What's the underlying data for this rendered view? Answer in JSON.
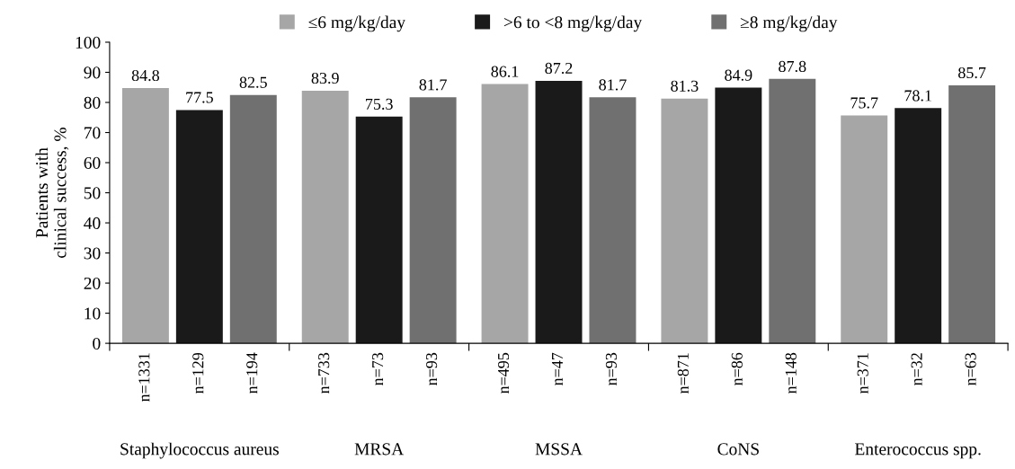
{
  "chart_data": {
    "type": "bar",
    "ylabel": "Patients with\nclinical success, %",
    "categories": [
      "Staphylococcus aureus",
      "MRSA",
      "MSSA",
      "CoNS",
      "Enterococcus spp."
    ],
    "series": [
      {
        "name": "≤6 mg/kg/day",
        "color": "#a6a6a6",
        "values": [
          84.8,
          83.9,
          86.1,
          81.3,
          75.7
        ]
      },
      {
        "name": ">6 to <8 mg/kg/day",
        "color": "#1a1a1a",
        "values": [
          77.5,
          75.3,
          87.2,
          84.9,
          78.1
        ]
      },
      {
        "name": "≥8 mg/kg/day",
        "color": "#707070",
        "values": [
          82.5,
          81.7,
          81.7,
          87.8,
          85.7
        ]
      }
    ],
    "ylim": [
      0,
      100
    ],
    "yticks": [
      0,
      10,
      20,
      30,
      40,
      50,
      60,
      70,
      80,
      90,
      100
    ],
    "grid": false,
    "legend": "top",
    "data_labels": true,
    "annotations": [
      "n=1331",
      "n=129",
      "n=194",
      "n=733",
      "n=73",
      "n=93",
      "n=495",
      "n=47",
      "n=93",
      "n=871",
      "n=86",
      "n=148",
      "n=371",
      "n=32",
      "n=63"
    ]
  }
}
